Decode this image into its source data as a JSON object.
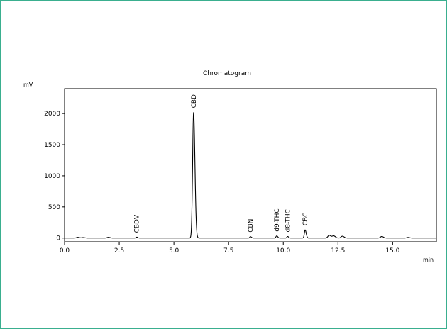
{
  "chart_data": {
    "type": "line",
    "title": "Chromatogram",
    "ylabel": "mV",
    "xlabel": "min",
    "xlim": [
      0,
      17.0
    ],
    "ylim": [
      -60,
      2400
    ],
    "x_ticks": [
      0.0,
      2.5,
      5.0,
      7.5,
      10.0,
      12.5,
      15.0
    ],
    "x_tick_labels": [
      "0.0",
      "2.5",
      "5.0",
      "7.5",
      "10.0",
      "12.5",
      "15.0"
    ],
    "y_ticks": [
      0,
      500,
      1000,
      1500,
      2000
    ],
    "y_tick_labels": [
      "0",
      "500",
      "1000",
      "1500",
      "2000"
    ],
    "grid": false,
    "peaks": [
      {
        "label": "CBDV",
        "rt": 3.3,
        "height": 15
      },
      {
        "label": "CBD",
        "rt": 5.9,
        "height": 2020
      },
      {
        "label": "CBN",
        "rt": 8.5,
        "height": 22
      },
      {
        "label": "d9-THC",
        "rt": 9.7,
        "height": 35
      },
      {
        "label": "d8-THC",
        "rt": 10.2,
        "height": 25
      },
      {
        "label": "CBC",
        "rt": 11.0,
        "height": 130
      }
    ],
    "minor_features": [
      {
        "rt": 0.6,
        "height": 12
      },
      {
        "rt": 0.85,
        "height": 8
      },
      {
        "rt": 2.0,
        "height": 12
      },
      {
        "rt": 12.1,
        "height": 45
      },
      {
        "rt": 12.3,
        "height": 35
      },
      {
        "rt": 12.7,
        "height": 30
      },
      {
        "rt": 14.5,
        "height": 25
      },
      {
        "rt": 15.7,
        "height": 10
      }
    ]
  }
}
